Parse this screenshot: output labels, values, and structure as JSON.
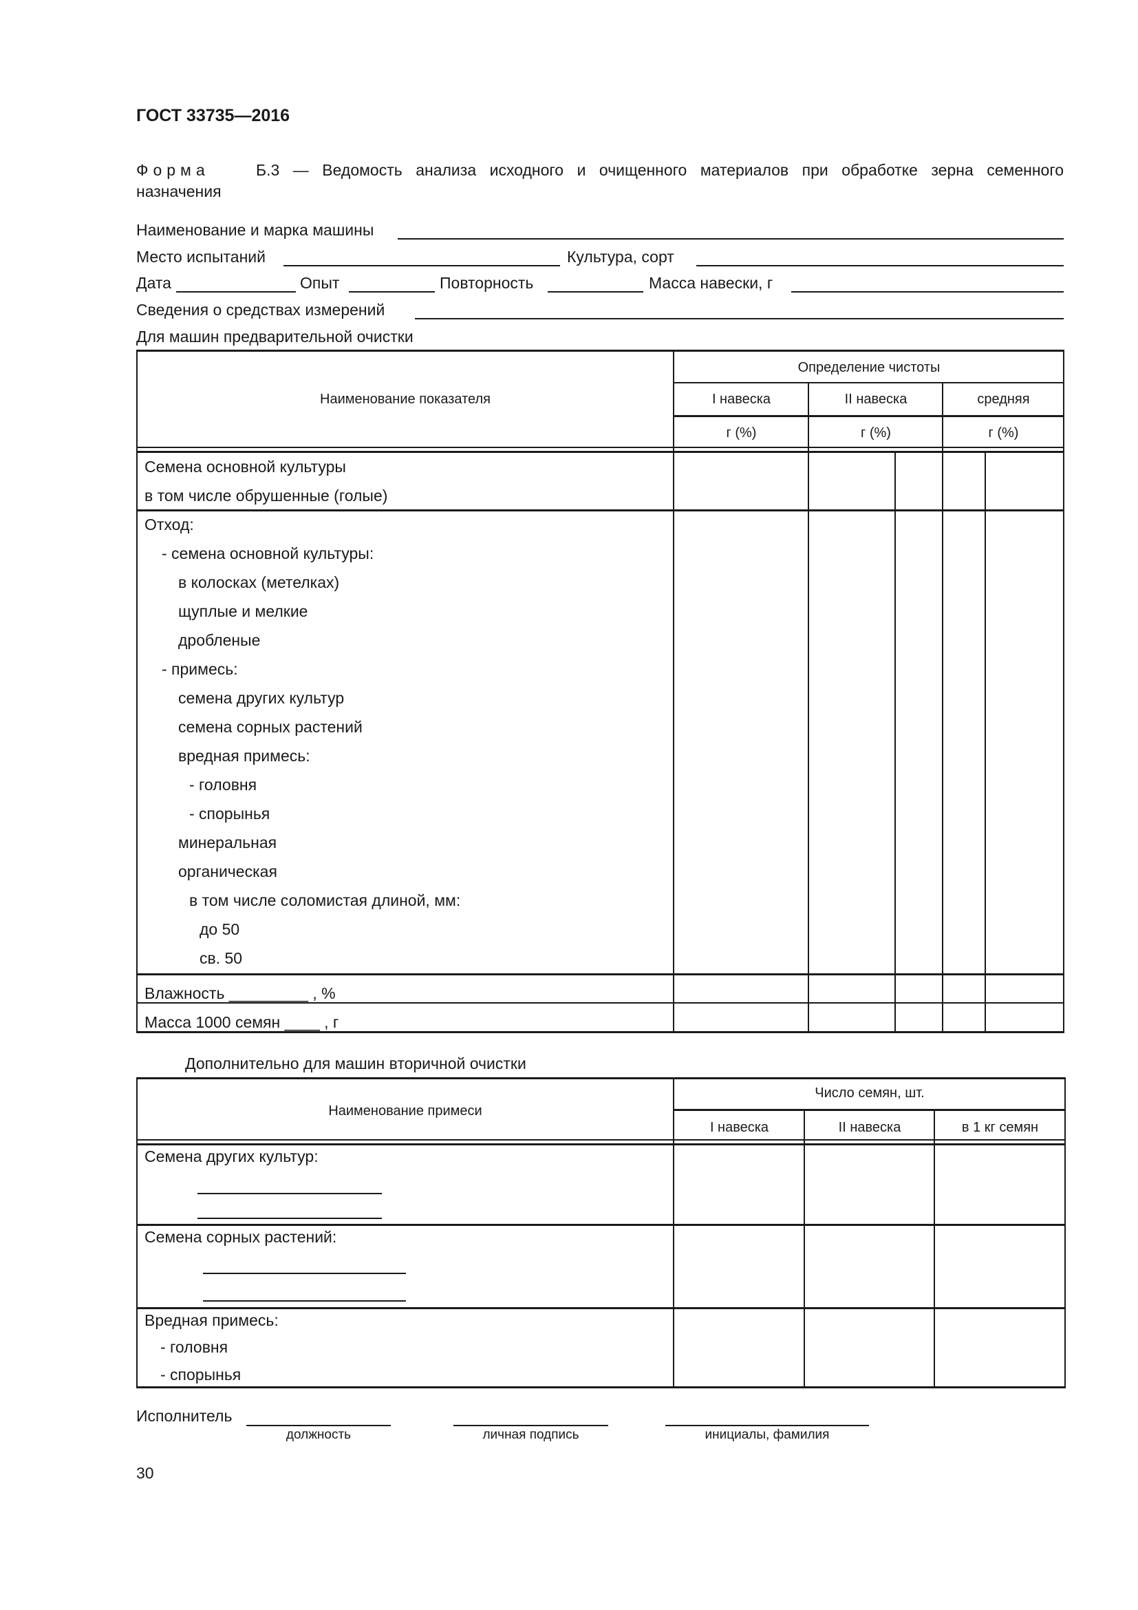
{
  "header": {
    "doc_code": "ГОСТ 33735—2016"
  },
  "form_title": {
    "prefix": "Ф о р м а",
    "line1": "Б.3 — Ведомость анализа исходного и очищенного материалов при обработке зерна семенного",
    "line2": "назначения"
  },
  "fields": {
    "machine_name": "Наименование и марка машины",
    "test_site": "Место испытаний",
    "crop_variety": "Культура, сорт",
    "date": "Дата",
    "experiment": "Опыт",
    "repetition": "Повторность",
    "sample_mass": "Масса навески, г",
    "measuring_instruments": "Сведения о средствах измерений",
    "section1": "Для машин предварительной очистки"
  },
  "table1": {
    "col_name": "Наименование показателя",
    "group_header": "Определение чистоты",
    "sub_headers": [
      "I навеска",
      "II навеска",
      "средняя"
    ],
    "units": [
      "г (%)",
      "г (%)",
      "г (%)"
    ],
    "rows": [
      {
        "label": "Семена основной культуры",
        "indent": 0
      },
      {
        "label": "в том числе обрушенные (голые)",
        "indent": 0
      },
      {
        "label": "Отход:",
        "indent": 0
      },
      {
        "label": "- семена основной культуры:",
        "indent": 1
      },
      {
        "label": "в колосках (метелках)",
        "indent": 2
      },
      {
        "label": "щуплые и мелкие",
        "indent": 2
      },
      {
        "label": "дробленые",
        "indent": 2
      },
      {
        "label": "- примесь:",
        "indent": 1
      },
      {
        "label": "семена других культур",
        "indent": 2
      },
      {
        "label": "семена сорных растений",
        "indent": 2
      },
      {
        "label": "вредная примесь:",
        "indent": 2
      },
      {
        "label": "- головня",
        "indent": 3
      },
      {
        "label": "- спорынья",
        "indent": 3
      },
      {
        "label": "минеральная",
        "indent": 2
      },
      {
        "label": "органическая",
        "indent": 2
      },
      {
        "label": "в том числе соломистая длиной, мм:",
        "indent": 3
      },
      {
        "label": "до 50",
        "indent": 4
      },
      {
        "label": "св. 50",
        "indent": 4
      },
      {
        "label": "Влажность _________ ,  %",
        "indent": 0
      },
      {
        "label": "Масса 1000 семян  ____ ,  г",
        "indent": 0
      }
    ]
  },
  "section2": "Дополнительно для машин вторичной очистки",
  "table2": {
    "col_name": "Наименование примеси",
    "group_header": "Число семян, шт.",
    "sub_headers": [
      "I навеска",
      "II навеска",
      "в 1 кг семян"
    ],
    "rows": [
      {
        "label": "Семена других культур:"
      },
      {
        "label": "Семена сорных растений:"
      },
      {
        "label": "Вредная примесь:"
      },
      {
        "label": "- головня"
      },
      {
        "label": "- спорынья"
      }
    ]
  },
  "signature": {
    "label": "Исполнитель",
    "captions": [
      "должность",
      "личная подпись",
      "инициалы, фамилия"
    ]
  },
  "page_number": "30"
}
